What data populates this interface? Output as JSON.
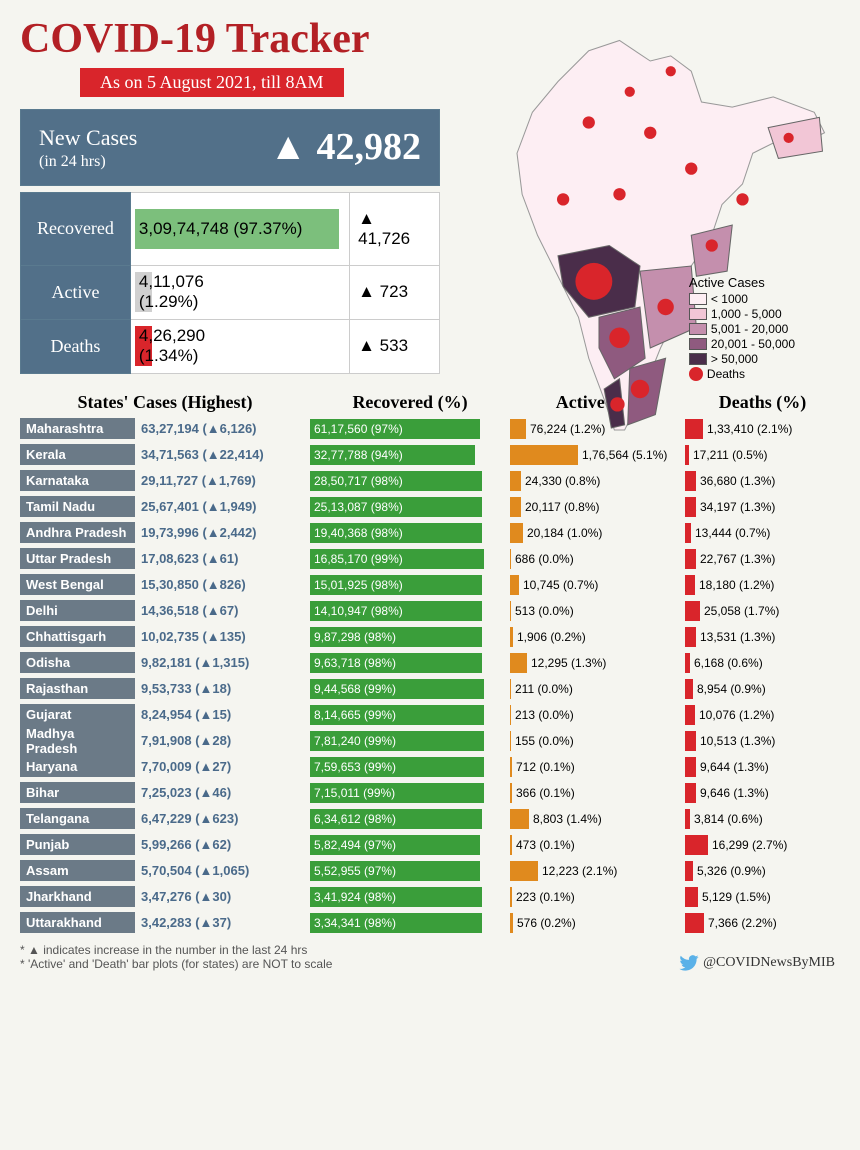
{
  "title": "COVID-19 Tracker",
  "title_color": "#b32025",
  "subtitle": "As on 5 August 2021, till 8AM",
  "subtitle_bg": "#d9252b",
  "new_cases": {
    "label": "New Cases",
    "sub": "(in 24 hrs)",
    "value": "▲ 42,982",
    "bg": "#527089"
  },
  "summary": {
    "label_bg": "#527089",
    "rows": [
      {
        "label": "Recovered",
        "value": "3,09,74,748 (97.37%)",
        "bar_pct": 97,
        "bar_color": "#7cbf7c",
        "delta": "▲ 41,726"
      },
      {
        "label": "Active",
        "value": "4,11,076 (1.29%)",
        "bar_pct": 8,
        "bar_color": "#d0d0d0",
        "delta": "▲ 723"
      },
      {
        "label": "Deaths",
        "value": "4,26,290 (1.34%)",
        "bar_pct": 8,
        "bar_color": "#d9252b",
        "delta": "▲ 533"
      }
    ]
  },
  "map_legend": {
    "title": "Active Cases",
    "items": [
      {
        "color": "#fdeef3",
        "label": "< 1000"
      },
      {
        "color": "#f2c6d6",
        "label": "1,000 - 5,000"
      },
      {
        "color": "#c48fad",
        "label": "5,001 - 20,000"
      },
      {
        "color": "#8f5a7f",
        "label": "20,001 - 50,000"
      },
      {
        "color": "#4a2d4a",
        "label": "> 50,000"
      }
    ],
    "deaths_color": "#d9252b",
    "deaths_label": "Deaths"
  },
  "columns": {
    "state": "States' Cases (Highest)",
    "rec": "Recovered (%)",
    "act": "Active (%)",
    "dth": "Deaths (%)"
  },
  "state_name_bg": "#6b7a87",
  "state_cases_color": "#4a6a8a",
  "rec_color": "#3a9e3a",
  "act_color": "#e08a1e",
  "dth_color": "#d9252b",
  "states": [
    {
      "name": "Maharashtra",
      "cases": "63,27,194 (▲6,126)",
      "rec": "61,17,560 (97%)",
      "rec_w": 170,
      "act": "76,224 (1.2%)",
      "act_w": 16,
      "dth": "1,33,410 (2.1%)",
      "dth_w": 18
    },
    {
      "name": "Kerala",
      "cases": "34,71,563 (▲22,414)",
      "rec": "32,77,788 (94%)",
      "rec_w": 165,
      "act": "1,76,564 (5.1%)",
      "act_w": 68,
      "dth": "17,211 (0.5%)",
      "dth_w": 4
    },
    {
      "name": "Karnataka",
      "cases": "29,11,727 (▲1,769)",
      "rec": "28,50,717 (98%)",
      "rec_w": 172,
      "act": "24,330 (0.8%)",
      "act_w": 11,
      "dth": "36,680 (1.3%)",
      "dth_w": 11
    },
    {
      "name": "Tamil Nadu",
      "cases": "25,67,401 (▲1,949)",
      "rec": "25,13,087 (98%)",
      "rec_w": 172,
      "act": "20,117 (0.8%)",
      "act_w": 11,
      "dth": "34,197 (1.3%)",
      "dth_w": 11
    },
    {
      "name": "Andhra Pradesh",
      "cases": "19,73,996 (▲2,442)",
      "rec": "19,40,368 (98%)",
      "rec_w": 172,
      "act": "20,184 (1.0%)",
      "act_w": 13,
      "dth": "13,444 (0.7%)",
      "dth_w": 6
    },
    {
      "name": "Uttar Pradesh",
      "cases": "17,08,623 (▲61)",
      "rec": "16,85,170 (99%)",
      "rec_w": 174,
      "act": "686 (0.0%)",
      "act_w": 1,
      "dth": "22,767 (1.3%)",
      "dth_w": 11
    },
    {
      "name": "West Bengal",
      "cases": "15,30,850 (▲826)",
      "rec": "15,01,925 (98%)",
      "rec_w": 172,
      "act": "10,745 (0.7%)",
      "act_w": 9,
      "dth": "18,180 (1.2%)",
      "dth_w": 10
    },
    {
      "name": "Delhi",
      "cases": "14,36,518 (▲67)",
      "rec": "14,10,947 (98%)",
      "rec_w": 172,
      "act": "513 (0.0%)",
      "act_w": 1,
      "dth": "25,058 (1.7%)",
      "dth_w": 15
    },
    {
      "name": "Chhattisgarh",
      "cases": "10,02,735 (▲135)",
      "rec": "9,87,298 (98%)",
      "rec_w": 172,
      "act": "1,906 (0.2%)",
      "act_w": 3,
      "dth": "13,531 (1.3%)",
      "dth_w": 11
    },
    {
      "name": "Odisha",
      "cases": "9,82,181 (▲1,315)",
      "rec": "9,63,718 (98%)",
      "rec_w": 172,
      "act": "12,295 (1.3%)",
      "act_w": 17,
      "dth": "6,168 (0.6%)",
      "dth_w": 5
    },
    {
      "name": "Rajasthan",
      "cases": "9,53,733 (▲18)",
      "rec": "9,44,568 (99%)",
      "rec_w": 174,
      "act": "211 (0.0%)",
      "act_w": 1,
      "dth": "8,954 (0.9%)",
      "dth_w": 8
    },
    {
      "name": "Gujarat",
      "cases": "8,24,954 (▲15)",
      "rec": "8,14,665 (99%)",
      "rec_w": 174,
      "act": "213 (0.0%)",
      "act_w": 1,
      "dth": "10,076 (1.2%)",
      "dth_w": 10
    },
    {
      "name": "Madhya Pradesh",
      "cases": "7,91,908 (▲28)",
      "rec": "7,81,240 (99%)",
      "rec_w": 174,
      "act": "155 (0.0%)",
      "act_w": 1,
      "dth": "10,513 (1.3%)",
      "dth_w": 11
    },
    {
      "name": "Haryana",
      "cases": "7,70,009 (▲27)",
      "rec": "7,59,653 (99%)",
      "rec_w": 174,
      "act": "712 (0.1%)",
      "act_w": 2,
      "dth": "9,644 (1.3%)",
      "dth_w": 11
    },
    {
      "name": "Bihar",
      "cases": "7,25,023 (▲46)",
      "rec": "7,15,011 (99%)",
      "rec_w": 174,
      "act": "366 (0.1%)",
      "act_w": 2,
      "dth": "9,646 (1.3%)",
      "dth_w": 11
    },
    {
      "name": "Telangana",
      "cases": "6,47,229 (▲623)",
      "rec": "6,34,612 (98%)",
      "rec_w": 172,
      "act": "8,803 (1.4%)",
      "act_w": 19,
      "dth": "3,814 (0.6%)",
      "dth_w": 5
    },
    {
      "name": "Punjab",
      "cases": "5,99,266 (▲62)",
      "rec": "5,82,494 (97%)",
      "rec_w": 170,
      "act": "473 (0.1%)",
      "act_w": 2,
      "dth": "16,299 (2.7%)",
      "dth_w": 23
    },
    {
      "name": "Assam",
      "cases": "5,70,504 (▲1,065)",
      "rec": "5,52,955 (97%)",
      "rec_w": 170,
      "act": "12,223 (2.1%)",
      "act_w": 28,
      "dth": "5,326 (0.9%)",
      "dth_w": 8
    },
    {
      "name": "Jharkhand",
      "cases": "3,47,276 (▲30)",
      "rec": "3,41,924 (98%)",
      "rec_w": 172,
      "act": "223 (0.1%)",
      "act_w": 2,
      "dth": "5,129 (1.5%)",
      "dth_w": 13
    },
    {
      "name": "Uttarakhand",
      "cases": "3,42,283 (▲37)",
      "rec": "3,34,341 (98%)",
      "rec_w": 172,
      "act": "576 (0.2%)",
      "act_w": 3,
      "dth": "7,366 (2.2%)",
      "dth_w": 19
    }
  ],
  "footer1": "* ▲ indicates increase in the number in the last 24 hrs",
  "footer2": "* 'Active' and 'Death' bar plots (for states) are NOT to scale",
  "twitter": "@COVIDNewsByMIB"
}
